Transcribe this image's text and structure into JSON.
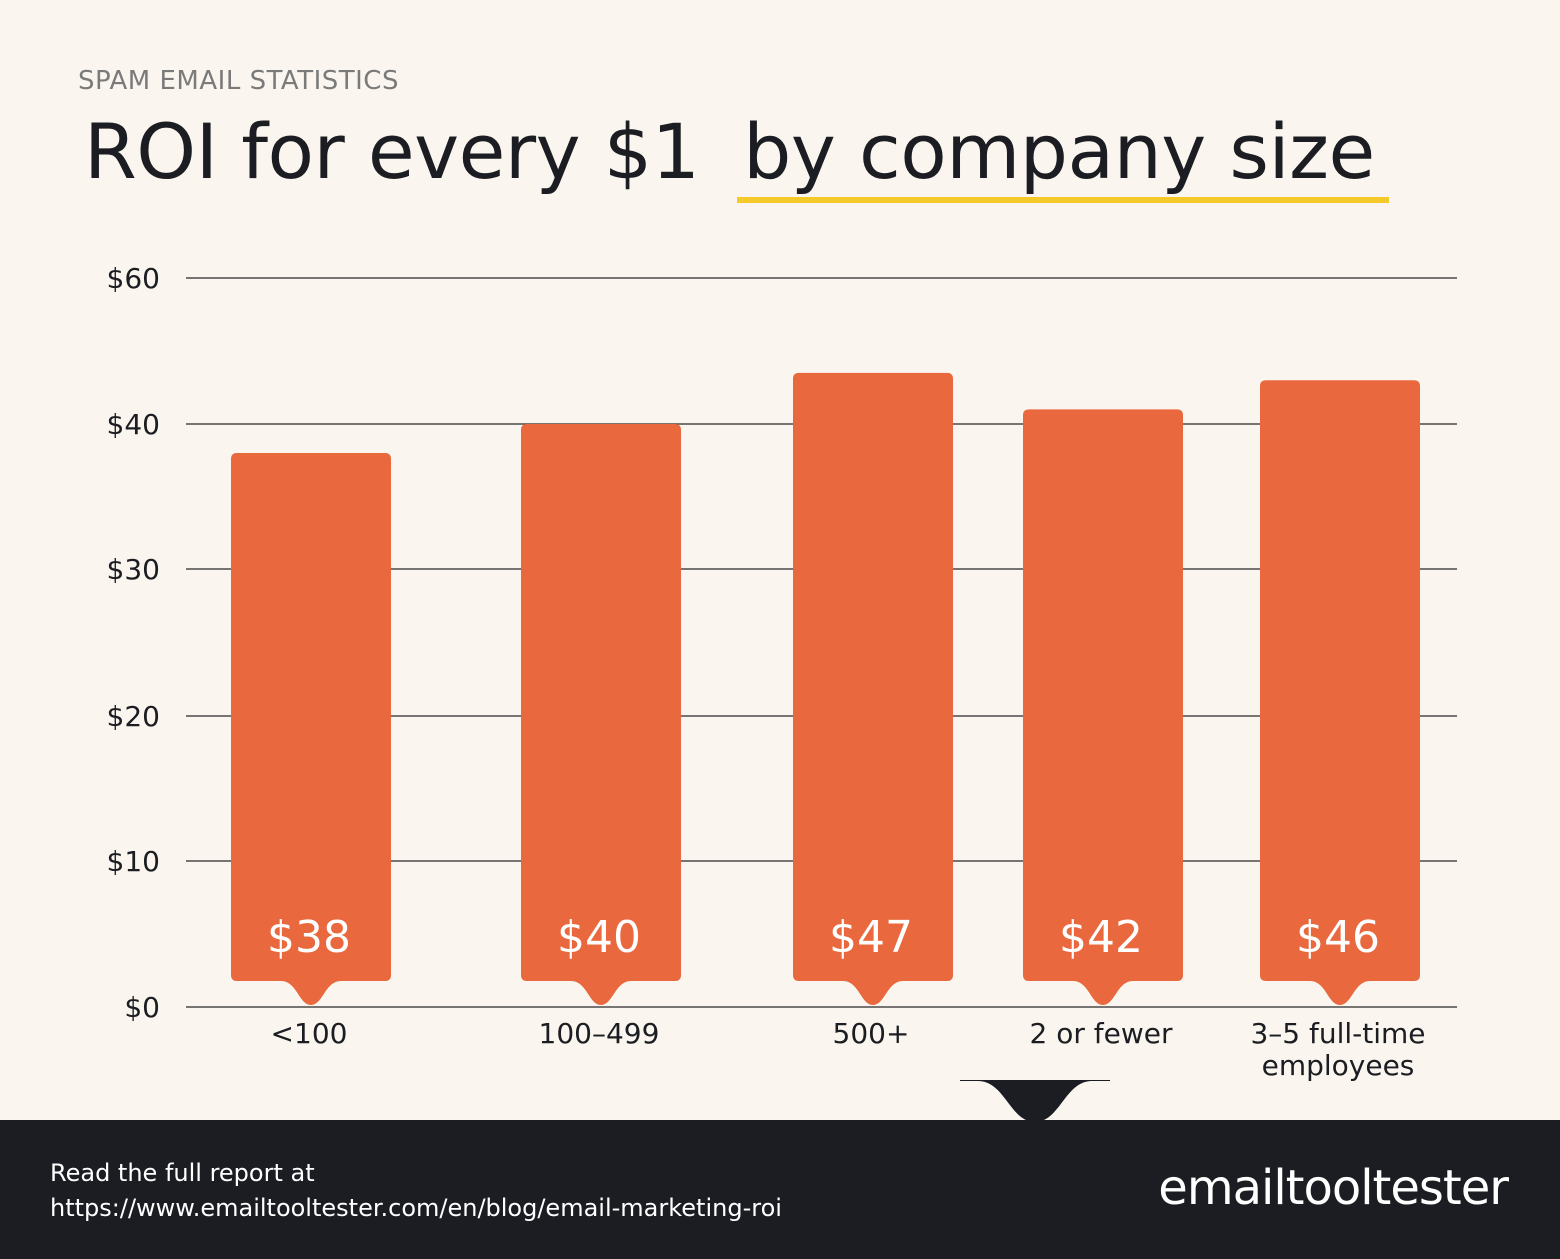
{
  "eyebrow": "SPAM EMAIL STATISTICS",
  "title_part1": "ROI for every $1",
  "title_part2": "by company size",
  "chart_data": {
    "type": "bar",
    "categories": [
      "<100",
      "100–499",
      "500+",
      "2 or fewer",
      "3–5 full-time employees"
    ],
    "category_lines": [
      [
        "<100"
      ],
      [
        "100–499"
      ],
      [
        "500+"
      ],
      [
        "2 or fewer"
      ],
      [
        "3–5 full-time",
        "employees"
      ]
    ],
    "values": [
      38,
      40,
      47,
      42,
      46
    ],
    "data_labels": [
      "$38",
      "$40",
      "$47",
      "$42",
      "$46"
    ],
    "yticks": [
      0,
      10,
      20,
      30,
      40,
      60
    ],
    "ytick_labels": [
      "$0",
      "$10",
      "$20",
      "$30",
      "$40",
      "$60"
    ],
    "grid": true,
    "bar_color": "#e9683d",
    "accent_color": "#f5c92a"
  },
  "footer": {
    "line1": "Read the full report at",
    "line2": "https://www.emailtooltester.com/en/blog/email-marketing-roi"
  },
  "logo_text": "emailtooltester",
  "colors": {
    "background": "#faf6ef",
    "footer": "#1b1d22",
    "text": "#1b1d22"
  }
}
